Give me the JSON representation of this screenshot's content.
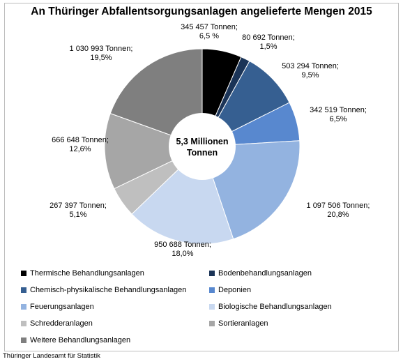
{
  "title": "An Thüringer Abfallentsorgungsanlagen angelieferte Mengen 2015",
  "center_label": [
    "5,3 Millionen",
    "Tonnen"
  ],
  "source": "Thüringer Landesamt für Statistik",
  "chart_data": {
    "type": "pie",
    "title": "An Thüringer Abfallentsorgungsanlagen angelieferte Mengen 2015",
    "unit": "Tonnen",
    "total_label": "5,3 Millionen Tonnen",
    "series": [
      {
        "name": "Thermische Behandlungsanlagen",
        "value": 345457,
        "percent": 6.5,
        "label": [
          "345 457 Tonnen;",
          "6,5 %"
        ],
        "color": "#000000"
      },
      {
        "name": "Bodenbehandlungsanlagen",
        "value": 80692,
        "percent": 1.5,
        "label": [
          "80 692 Tonnen;",
          "1,5%"
        ],
        "color": "#1b3457"
      },
      {
        "name": "Chemisch-physikalische Behandlungsanlagen",
        "value": 503294,
        "percent": 9.5,
        "label": [
          "503 294 Tonnen;",
          "9,5%"
        ],
        "color": "#365f91"
      },
      {
        "name": "Deponien",
        "value": 342519,
        "percent": 6.5,
        "label": [
          "342 519 Tonnen;",
          "6,5%"
        ],
        "color": "#5888cf"
      },
      {
        "name": "Feuerungsanlagen",
        "value": 1097506,
        "percent": 20.8,
        "label": [
          "1 097 506 Tonnen;",
          "20,8%"
        ],
        "color": "#93b3e0"
      },
      {
        "name": "Biologische Behandlungsanlagen",
        "value": 950688,
        "percent": 18.0,
        "label": [
          "950 688 Tonnen;",
          "18,0%"
        ],
        "color": "#c8d8f0"
      },
      {
        "name": "Schredderanlagen",
        "value": 267397,
        "percent": 5.1,
        "label": [
          "267 397 Tonnen;",
          "5,1%"
        ],
        "color": "#bfbfbf"
      },
      {
        "name": "Sortieranlagen",
        "value": 666648,
        "percent": 12.6,
        "label": [
          "666 648 Tonnen;",
          "12,6%"
        ],
        "color": "#a6a6a6"
      },
      {
        "name": "Weitere Behandlungsanlagen",
        "value": 1030993,
        "percent": 19.5,
        "label": [
          "1 030 993 Tonnen;",
          "19,5%"
        ],
        "color": "#7f7f7f"
      }
    ]
  }
}
